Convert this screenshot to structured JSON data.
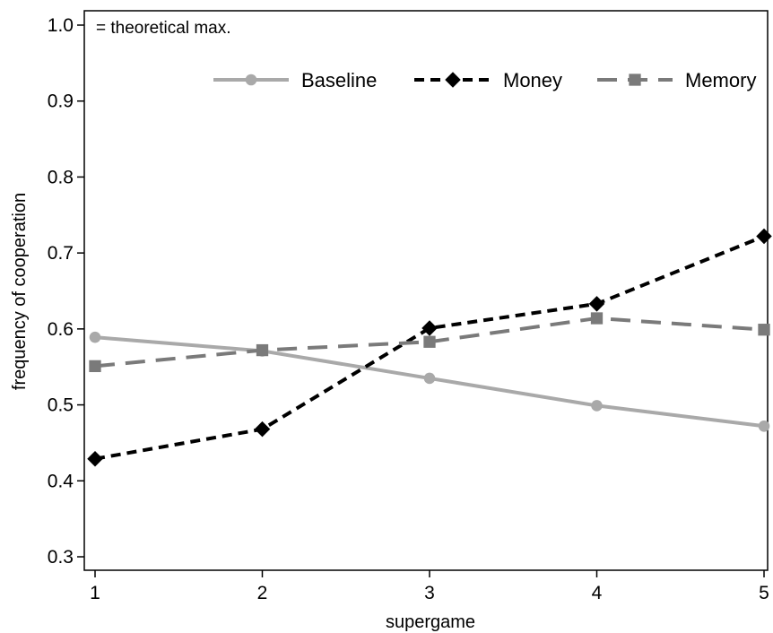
{
  "chart_data": {
    "type": "line",
    "xlabel": "supergame",
    "ylabel": "frequency of cooperation",
    "x": [
      1,
      2,
      3,
      4,
      5
    ],
    "xticks": [
      "1",
      "2",
      "3",
      "4",
      "5"
    ],
    "xlim": [
      1,
      5
    ],
    "yticks": [
      "0.3",
      "0.4",
      "0.5",
      "0.6",
      "0.7",
      "0.8",
      "0.9",
      "1.0"
    ],
    "ylim": [
      0.3,
      1.0
    ],
    "grid": false,
    "legend_position": "top-right",
    "annotation": "= theoretical max.",
    "series": [
      {
        "name": "Baseline",
        "values": [
          0.589,
          0.571,
          0.535,
          0.499,
          0.472
        ],
        "color": "#a9a9a9",
        "marker": "circle",
        "line": "solid"
      },
      {
        "name": "Money",
        "values": [
          0.429,
          0.468,
          0.601,
          0.633,
          0.722
        ],
        "color": "#000000",
        "marker": "diamond",
        "line": "short-dash"
      },
      {
        "name": "Memory",
        "values": [
          0.551,
          0.572,
          0.583,
          0.614,
          0.599
        ],
        "color": "#7a7a7a",
        "marker": "square",
        "line": "long-dash"
      }
    ]
  }
}
